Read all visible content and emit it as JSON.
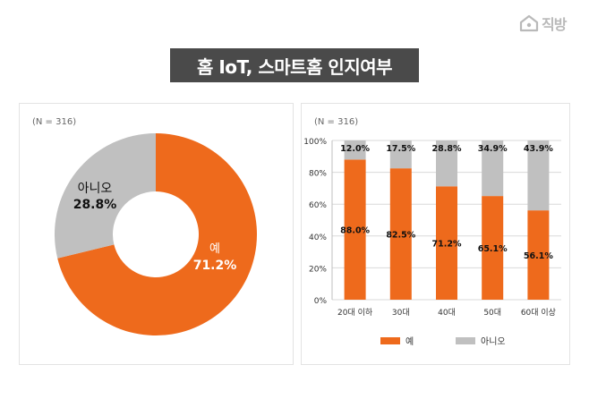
{
  "logo": {
    "text": "직방",
    "icon": "house-logo-icon"
  },
  "title": "홈 IoT, 스마트홈 인지여부",
  "colors": {
    "yes": "#EE6A1C",
    "no": "#C0C0C0",
    "title_bg": "#4A4A4A",
    "axis_text": "#333333",
    "note": "#666666"
  },
  "chart_data": [
    {
      "type": "pie",
      "style": "donut",
      "note": "(N = 316)",
      "slices": [
        {
          "label": "예",
          "value": 71.2,
          "value_label": "71.2%"
        },
        {
          "label": "아니오",
          "value": 28.8,
          "value_label": "28.8%"
        }
      ]
    },
    {
      "type": "bar",
      "stacked": true,
      "note": "(N = 316)",
      "categories": [
        "20대 이하",
        "30대",
        "40대",
        "50대",
        "60대 이상"
      ],
      "series": [
        {
          "name": "예",
          "values": [
            88.0,
            82.5,
            71.2,
            65.1,
            56.1
          ],
          "labels": [
            "88.0%",
            "82.5%",
            "71.2%",
            "65.1%",
            "56.1%"
          ]
        },
        {
          "name": "아니오",
          "values": [
            12.0,
            17.5,
            28.8,
            34.9,
            43.9
          ],
          "labels": [
            "12.0%",
            "17.5%",
            "28.8%",
            "34.9%",
            "43.9%"
          ]
        }
      ],
      "ylim": [
        0,
        100
      ],
      "yticks": [
        "0%",
        "20%",
        "40%",
        "60%",
        "80%",
        "100%"
      ],
      "grid": true,
      "legend": [
        "예",
        "아니오"
      ],
      "legend_position": "bottom"
    }
  ]
}
